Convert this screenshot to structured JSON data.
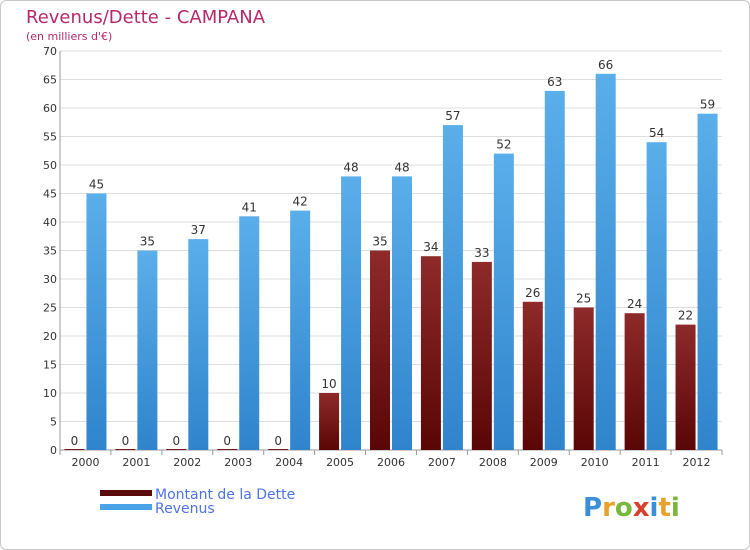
{
  "chart_data": {
    "type": "bar",
    "title": "Revenus/Dette - CAMPANA",
    "subtitle": "(en milliers d'€)",
    "categories": [
      "2000",
      "2001",
      "2002",
      "2003",
      "2004",
      "2005",
      "2006",
      "2007",
      "2008",
      "2009",
      "2010",
      "2011",
      "2012"
    ],
    "series": [
      {
        "name": "Montant de la Dette",
        "color": "#7a1a1a",
        "values": [
          0,
          0,
          0,
          0,
          0,
          10,
          35,
          34,
          33,
          26,
          25,
          24,
          22
        ]
      },
      {
        "name": "Revenus",
        "color": "#4aa3e6",
        "values": [
          45,
          35,
          37,
          41,
          42,
          48,
          48,
          57,
          52,
          63,
          66,
          54,
          59
        ]
      }
    ],
    "ylim": [
      0,
      70
    ],
    "ytick_step": 5,
    "grid": true,
    "legend": "bottom-left"
  },
  "logo": {
    "letters": [
      {
        "ch": "P",
        "color": "#3a8fd8"
      },
      {
        "ch": "r",
        "color": "#e8a12a"
      },
      {
        "ch": "o",
        "color": "#78b83a"
      },
      {
        "ch": "x",
        "color": "#d8402a"
      },
      {
        "ch": "i",
        "color": "#3a8fd8"
      },
      {
        "ch": "t",
        "color": "#e8a12a"
      },
      {
        "ch": "i",
        "color": "#78b83a"
      }
    ]
  }
}
